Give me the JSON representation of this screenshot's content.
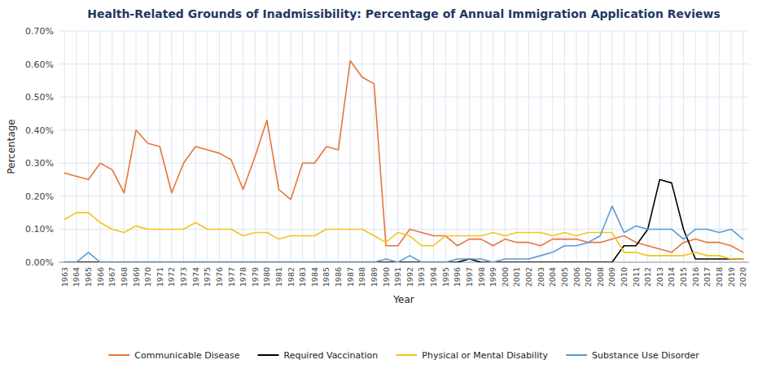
{
  "chart_data": {
    "type": "line",
    "title": "Health-Related Grounds of Inadmissibility: Percentage of Annual Immigration Application Reviews",
    "x_label": "Year",
    "y_label": "Percentage",
    "x": [
      1963,
      1964,
      1965,
      1966,
      1967,
      1968,
      1969,
      1970,
      1971,
      1972,
      1973,
      1974,
      1975,
      1976,
      1977,
      1978,
      1979,
      1980,
      1981,
      1982,
      1983,
      1984,
      1985,
      1986,
      1987,
      1988,
      1989,
      1990,
      1991,
      1992,
      1993,
      1994,
      1995,
      1996,
      1997,
      1998,
      1999,
      2000,
      2001,
      2002,
      2003,
      2004,
      2005,
      2006,
      2007,
      2008,
      2009,
      2010,
      2011,
      2012,
      2013,
      2014,
      2015,
      2016,
      2017,
      2018,
      2019,
      2020
    ],
    "series": [
      {
        "name": "Communicable Disease",
        "color": "#e8743b",
        "values": [
          0.0027,
          0.0026,
          0.0025,
          0.003,
          0.0028,
          0.0021,
          0.004,
          0.0036,
          0.0035,
          0.0021,
          0.003,
          0.0035,
          0.0034,
          0.0033,
          0.0031,
          0.0022,
          0.0032,
          0.0043,
          0.0022,
          0.0019,
          0.003,
          0.003,
          0.0035,
          0.0034,
          0.0061,
          0.0056,
          0.0054,
          0.0005,
          0.0005,
          0.001,
          0.0009,
          0.0008,
          0.0008,
          0.0005,
          0.0007,
          0.0007,
          0.0005,
          0.0007,
          0.0006,
          0.0006,
          0.0005,
          0.0007,
          0.0007,
          0.0007,
          0.0006,
          0.0006,
          0.0007,
          0.0008,
          0.0006,
          0.0005,
          0.0004,
          0.0003,
          0.0006,
          0.0007,
          0.0006,
          0.0006,
          0.0005,
          0.0003
        ]
      },
      {
        "name": "Required Vaccination",
        "color": "#000000",
        "values": [
          0.0,
          0.0,
          0.0,
          0.0,
          0.0,
          0.0,
          0.0,
          0.0,
          0.0,
          0.0,
          0.0,
          0.0,
          0.0,
          0.0,
          0.0,
          0.0,
          0.0,
          0.0,
          0.0,
          0.0,
          0.0,
          0.0,
          0.0,
          0.0,
          0.0,
          0.0,
          0.0,
          0.0,
          0.0,
          0.0,
          0.0,
          0.0,
          0.0,
          0.0,
          0.0001,
          0.0,
          0.0,
          0.0,
          0.0,
          0.0,
          0.0,
          0.0,
          0.0,
          0.0,
          0.0,
          0.0,
          0.0,
          0.0005,
          0.0005,
          0.001,
          0.0025,
          0.0024,
          0.001,
          0.0001,
          0.0001,
          0.0001,
          0.0001,
          0.0001
        ]
      },
      {
        "name": "Physical or Mental Disability",
        "color": "#f5c518",
        "values": [
          0.0013,
          0.0015,
          0.0015,
          0.0012,
          0.001,
          0.0009,
          0.0011,
          0.001,
          0.001,
          0.001,
          0.001,
          0.0012,
          0.001,
          0.001,
          0.001,
          0.0008,
          0.0009,
          0.0009,
          0.0007,
          0.0008,
          0.0008,
          0.0008,
          0.001,
          0.001,
          0.001,
          0.001,
          0.0008,
          0.0006,
          0.0009,
          0.0008,
          0.0005,
          0.0005,
          0.0008,
          0.0008,
          0.0008,
          0.0008,
          0.0009,
          0.0008,
          0.0009,
          0.0009,
          0.0009,
          0.0008,
          0.0009,
          0.0008,
          0.0009,
          0.0009,
          0.0009,
          0.0003,
          0.0003,
          0.0002,
          0.0002,
          0.0002,
          0.0002,
          0.0003,
          0.0002,
          0.0002,
          0.0001,
          0.0001
        ]
      },
      {
        "name": "Substance Use Disorder",
        "color": "#5b9bd5",
        "values": [
          0.0,
          0.0,
          0.0003,
          0.0,
          0.0,
          0.0,
          0.0,
          0.0,
          0.0,
          0.0,
          0.0,
          0.0,
          0.0,
          0.0,
          0.0,
          0.0,
          0.0,
          0.0,
          0.0,
          0.0,
          0.0,
          0.0,
          0.0,
          0.0,
          0.0,
          0.0,
          0.0,
          0.0001,
          0.0,
          0.0002,
          0.0,
          0.0,
          0.0,
          0.0001,
          0.0001,
          0.0001,
          0.0,
          0.0001,
          0.0001,
          0.0001,
          0.0002,
          0.0003,
          0.0005,
          0.0005,
          0.0006,
          0.0008,
          0.0017,
          0.0009,
          0.0011,
          0.001,
          0.001,
          0.001,
          0.0007,
          0.001,
          0.001,
          0.0009,
          0.001,
          0.0007
        ]
      }
    ],
    "xlim": [
      1962.5,
      2020.5
    ],
    "xticks": [
      1963,
      1964,
      1965,
      1966,
      1967,
      1968,
      1969,
      1970,
      1971,
      1972,
      1973,
      1974,
      1975,
      1976,
      1977,
      1978,
      1979,
      1980,
      1981,
      1982,
      1983,
      1984,
      1985,
      1986,
      1987,
      1988,
      1989,
      1990,
      1991,
      1992,
      1993,
      1994,
      1995,
      1996,
      1997,
      1998,
      1999,
      2000,
      2001,
      2002,
      2003,
      2004,
      2005,
      2006,
      2007,
      2008,
      2009,
      2010,
      2011,
      2012,
      2013,
      2014,
      2015,
      2016,
      2017,
      2018,
      2019,
      2020
    ],
    "ylim": [
      0,
      0.007
    ],
    "yticks": [
      {
        "value": 0.0,
        "label": "0.00%"
      },
      {
        "value": 0.001,
        "label": "0.10%"
      },
      {
        "value": 0.002,
        "label": "0.20%"
      },
      {
        "value": 0.003,
        "label": "0.30%"
      },
      {
        "value": 0.004,
        "label": "0.40%"
      },
      {
        "value": 0.005,
        "label": "0.50%"
      },
      {
        "value": 0.006,
        "label": "0.60%"
      },
      {
        "value": 0.007,
        "label": "0.70%"
      }
    ],
    "grid": true,
    "legend": "bottom"
  }
}
